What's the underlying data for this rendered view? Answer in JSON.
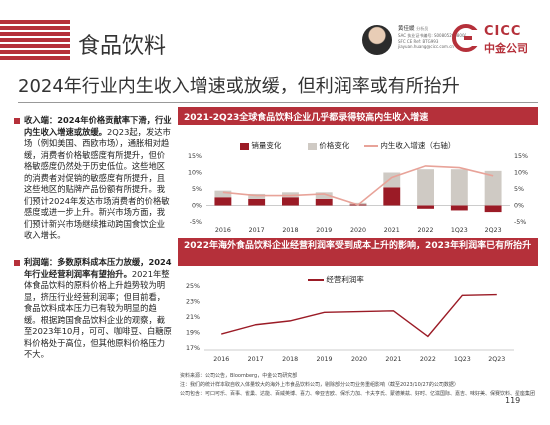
{
  "header": {
    "section_title": "食品饮料",
    "author_name": "黄佳媛",
    "author_role": "分析员",
    "author_lines": [
      "SAC 执业证书编号: S0080520080002",
      "SFC CE Ref: BTG993",
      "jiayuan.huang@cicc.com.cn"
    ],
    "logo_en": "CICC",
    "logo_zh": "中金公司"
  },
  "headline": "2024年行业内生收入增速或放缓，但利润率或有所抬升",
  "left": {
    "p1_bold": "收入端：2024年价格贡献率下滑，行业内生收入增速或放缓。",
    "p1_text": "2Q23起，发达市场（例如美国、西欧市场），通胀相对趋缓，消费者价格敏感度有所提升，但价格敏感度仍然处于历史低位。这些地区的消费者对促销的敏感度有所提升，且这些地区的贴牌产品份额有所提升。我们预计2024年发达市场消费者的价格敏感度或进一步上升。新兴市场方面，我们预计新兴市场继续推动跨国食饮企业收入增长。",
    "p2_bold": "利润端：多数原料成本压力放缓，2024年行业经营利润率有望抬升。",
    "p2_text": "2021年整体食品饮料的原料价格上升趋势较为明显，挤压行业经营利润率；但目前看，食品饮料成本压力已有较为明显的趋缓。根据跨国食品饮料企业的观察，截至2023年10月，可可、咖啡豆、白糖原料价格处于高位，但其他原料价格压力不大。"
  },
  "chart1": {
    "title": "2021-2Q23全球食品饮料企业几乎都录得较高内生收入增速",
    "legend": [
      "销量变化",
      "价格变化",
      "内生收入增速（右轴）"
    ]
  },
  "chart2": {
    "title": "2022年海外食品饮料企业经营利润率受到成本上升的影响，2023年利润率已有所抬升",
    "legend": [
      "经营利润率"
    ]
  },
  "chart_data": [
    {
      "type": "bar",
      "title": "2021-2Q23全球食品饮料企业几乎都录得较高内生收入增速",
      "categories": [
        "2016",
        "2017",
        "2018",
        "2019",
        "2020",
        "2021",
        "2022",
        "1Q23",
        "2Q23"
      ],
      "series": [
        {
          "name": "销量变化",
          "type": "bar",
          "values": [
            2.5,
            2.0,
            2.5,
            2.0,
            0.3,
            5.5,
            -1.0,
            -1.5,
            -2.0
          ]
        },
        {
          "name": "价格变化",
          "type": "bar",
          "values": [
            2.0,
            1.5,
            1.5,
            2.0,
            0.5,
            4.5,
            11.0,
            11.0,
            10.5
          ]
        },
        {
          "name": "内生收入增速（右轴）",
          "type": "line",
          "axis": "right",
          "values": [
            4.0,
            3.0,
            3.0,
            3.5,
            0.2,
            8.5,
            12.0,
            11.5,
            9.0
          ]
        }
      ],
      "yticks_left": [
        "15%",
        "10%",
        "5%",
        "0%",
        "-5%"
      ],
      "yticks_right": [
        "15%",
        "10%",
        "5%",
        "0%",
        "-5%"
      ],
      "ylim": [
        -5,
        15
      ]
    },
    {
      "type": "line",
      "title": "2022年海外食品饮料企业经营利润率受到成本上升的影响，2023年利润率已有所抬升",
      "categories": [
        "2016",
        "2017",
        "2018",
        "2019",
        "2020",
        "2021",
        "2022",
        "1Q23",
        "2Q23"
      ],
      "series": [
        {
          "name": "经营利润率",
          "values": [
            18.8,
            20.0,
            20.5,
            21.6,
            21.7,
            21.8,
            18.5,
            23.8,
            23.9
          ]
        }
      ],
      "yticks": [
        "25%",
        "23%",
        "21%",
        "19%",
        "17%"
      ],
      "ylim": [
        17,
        25
      ]
    }
  ],
  "footer": {
    "line1": "资料来源：公司公告，Bloomberg，中金公司研究部",
    "line2": "注：我们的统计样本取自收入体量较大的海外上市食品饮料公司，剔除部分公司业务重组影响（截至2023/10/27的公司数据）",
    "line3": "公司包含：可口可乐、百事、雀巢、达能、百威英博、喜力、帝亚吉欧、保乐力加、卡夫亨氏、蒙德莱兹、好时、亿滋国际、嘉吉、味好美、保赛饮料、星座集团"
  },
  "page_number": "119"
}
